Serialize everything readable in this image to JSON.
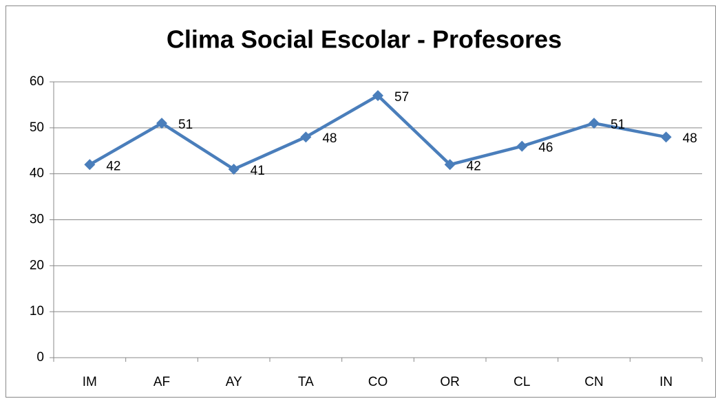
{
  "chart_data": {
    "type": "line",
    "title": "Clima Social Escolar - Profesores",
    "categories": [
      "IM",
      "AF",
      "AY",
      "TA",
      "CO",
      "OR",
      "CL",
      "CN",
      "IN"
    ],
    "values": [
      42,
      51,
      41,
      48,
      57,
      42,
      46,
      51,
      48
    ],
    "color": "#4a7ebb",
    "ylim": [
      0,
      60
    ],
    "yticks": [
      0,
      10,
      20,
      30,
      40,
      50,
      60
    ],
    "grid": true
  }
}
